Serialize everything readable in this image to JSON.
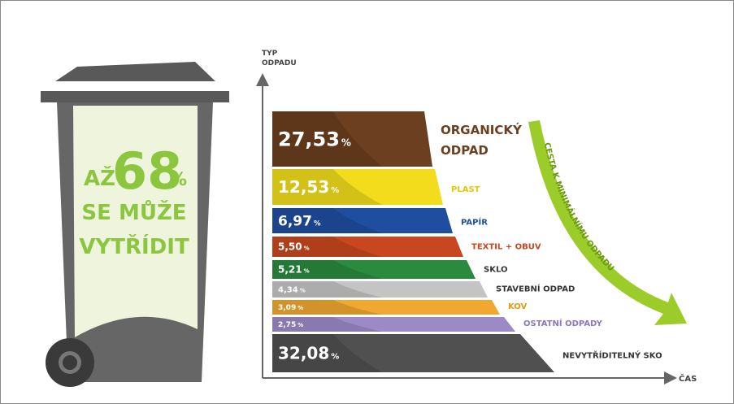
{
  "bin": {
    "line1": "AŽ",
    "big": "68",
    "unit": "%",
    "line2": "SE MŮŽE",
    "line3": "VYTŘÍDIT"
  },
  "chart": {
    "y_axis_label": [
      "TYP",
      "ODPADU"
    ],
    "x_axis_label": "ČAS",
    "arrow_label": "CESTA K MINIMÁLNÍMU ODPADU",
    "unit": "%",
    "bands": [
      {
        "value": "27,53",
        "label": [
          "ORGANICKÝ",
          "ODPAD"
        ],
        "color": "#6b3f1f"
      },
      {
        "value": "12,53",
        "label": [
          "PLAST"
        ],
        "color": "#f2dc1c"
      },
      {
        "value": "6,97",
        "label": [
          "PAPÍR"
        ],
        "color": "#1f4ea1"
      },
      {
        "value": "5,50",
        "label": [
          "TEXTIL + OBUV"
        ],
        "color": "#c8471f"
      },
      {
        "value": "5,21",
        "label": [
          "SKLO"
        ],
        "color": "#2a8a3e"
      },
      {
        "value": "4,34",
        "label": [
          "STAVEBNÍ ODPAD"
        ],
        "color": "#c4c4c4"
      },
      {
        "value": "3,09",
        "label": [
          "KOV"
        ],
        "color": "#f0a830"
      },
      {
        "value": "2,75",
        "label": [
          "OSTATNÍ ODPADY"
        ],
        "color": "#9b8ac6"
      },
      {
        "value": "32,08",
        "label": [
          "NEVYTŘÍDITELNÝ SKO"
        ],
        "color": "#505050"
      }
    ]
  }
}
